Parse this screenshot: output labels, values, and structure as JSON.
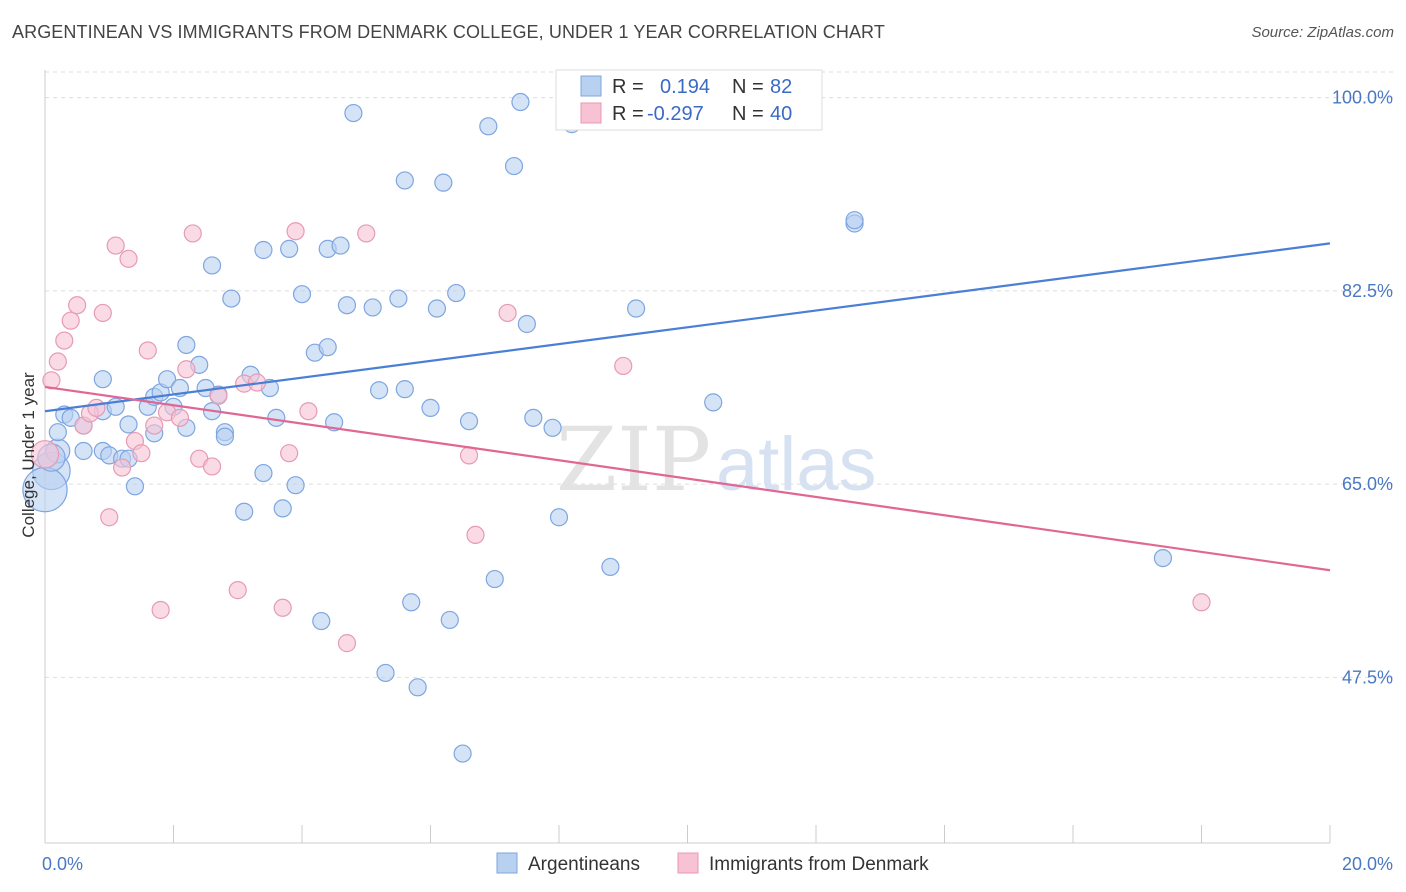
{
  "title": "ARGENTINEAN VS IMMIGRANTS FROM DENMARK COLLEGE, UNDER 1 YEAR CORRELATION CHART",
  "source": "Source: ZipAtlas.com",
  "watermark": {
    "zip": "ZIP",
    "atlas": "atlas"
  },
  "colors": {
    "blue": "#4a7fd6",
    "blue_fill": "#b9d1f1",
    "pink": "#e06794",
    "pink_fill": "#f7c3d4",
    "axis_text": "#4a78c2",
    "grid": "#dddddd"
  },
  "legend_top": {
    "rows": [
      {
        "r_label": "R =",
        "r_value": "0.194",
        "n_label": "N =",
        "n_value": "82"
      },
      {
        "r_label": "R =",
        "r_value": "-0.297",
        "n_label": "N =",
        "n_value": "40"
      }
    ]
  },
  "legend_bottom": [
    "Argentineans",
    "Immigrants from Denmark"
  ],
  "chart_data": {
    "type": "scatter",
    "title": "ARGENTINEAN VS IMMIGRANTS FROM DENMARK COLLEGE, UNDER 1 YEAR CORRELATION CHART",
    "xlabel": "",
    "ylabel": "College, Under 1 year",
    "xlim": [
      0,
      20
    ],
    "ylim": [
      32.5,
      102.5
    ],
    "x_tick_labels": [
      "0.0%",
      "20.0%"
    ],
    "y_tick_labels": [
      "100.0%",
      "82.5%",
      "65.0%",
      "47.5%"
    ],
    "y_ticks": [
      100,
      82.5,
      65,
      47.5
    ],
    "grid": "horizontal dashed",
    "legend_position": "top-center",
    "series": [
      {
        "name": "Argentineans",
        "color": "#4a7fd6",
        "R": 0.194,
        "N": 82,
        "trend": [
          [
            0,
            71.6
          ],
          [
            20,
            86.8
          ]
        ],
        "points": [
          [
            0.1,
            66.2,
            2.2
          ],
          [
            0.2,
            68.0,
            1.4
          ],
          [
            0.2,
            69.7,
            1.0
          ],
          [
            0.3,
            71.3,
            1.0
          ],
          [
            0.4,
            71.0,
            1.0
          ],
          [
            0.6,
            70.3,
            1.0
          ],
          [
            0.6,
            68.0,
            1.0
          ],
          [
            0.9,
            68.0,
            1.0
          ],
          [
            0.9,
            71.6,
            1.0
          ],
          [
            1.0,
            67.6,
            1.0
          ],
          [
            0.9,
            74.5,
            1.0
          ],
          [
            1.1,
            72.0,
            1.0
          ],
          [
            1.2,
            67.3,
            1.0
          ],
          [
            1.3,
            70.4,
            1.0
          ],
          [
            1.3,
            67.3,
            1.0
          ],
          [
            1.4,
            64.8,
            1.0
          ],
          [
            1.6,
            72.0,
            1.0
          ],
          [
            1.7,
            72.9,
            1.0
          ],
          [
            1.7,
            69.6,
            1.0
          ],
          [
            1.8,
            73.3,
            1.0
          ],
          [
            1.9,
            74.5,
            1.0
          ],
          [
            2.0,
            72.0,
            1.0
          ],
          [
            2.1,
            73.7,
            1.0
          ],
          [
            2.2,
            70.1,
            1.0
          ],
          [
            2.2,
            77.6,
            1.0
          ],
          [
            2.4,
            75.8,
            1.0
          ],
          [
            2.5,
            73.7,
            1.0
          ],
          [
            2.6,
            84.8,
            1.0
          ],
          [
            2.6,
            71.6,
            1.0
          ],
          [
            2.7,
            73.1,
            1.0
          ],
          [
            2.8,
            69.7,
            1.0
          ],
          [
            2.8,
            69.3,
            1.0
          ],
          [
            2.9,
            81.8,
            1.0
          ],
          [
            3.1,
            62.5,
            1.0
          ],
          [
            3.2,
            74.9,
            1.0
          ],
          [
            3.4,
            66.0,
            1.0
          ],
          [
            3.4,
            86.2,
            1.0
          ],
          [
            3.5,
            73.7,
            1.0
          ],
          [
            3.6,
            71.0,
            1.0
          ],
          [
            3.7,
            62.8,
            1.0
          ],
          [
            3.8,
            86.3,
            1.0
          ],
          [
            3.9,
            64.9,
            1.0
          ],
          [
            4.0,
            82.2,
            1.0
          ],
          [
            4.2,
            76.9,
            1.0
          ],
          [
            4.3,
            52.6,
            1.0
          ],
          [
            4.4,
            86.3,
            1.0
          ],
          [
            4.4,
            77.4,
            1.0
          ],
          [
            4.5,
            70.6,
            1.0
          ],
          [
            4.6,
            86.6,
            1.0
          ],
          [
            4.7,
            81.2,
            1.0
          ],
          [
            4.8,
            98.6,
            1.0
          ],
          [
            5.1,
            81.0,
            1.0
          ],
          [
            5.2,
            73.5,
            1.0
          ],
          [
            5.3,
            47.9,
            1.0
          ],
          [
            5.5,
            81.8,
            1.0
          ],
          [
            5.6,
            92.5,
            1.0
          ],
          [
            5.6,
            73.6,
            1.0
          ],
          [
            5.7,
            54.3,
            1.0
          ],
          [
            5.8,
            46.6,
            1.0
          ],
          [
            6.0,
            71.9,
            1.0
          ],
          [
            6.1,
            80.9,
            1.0
          ],
          [
            6.2,
            92.3,
            1.0
          ],
          [
            6.3,
            52.7,
            1.0
          ],
          [
            6.4,
            82.3,
            1.0
          ],
          [
            6.5,
            40.6,
            1.0
          ],
          [
            6.6,
            70.7,
            1.0
          ],
          [
            6.9,
            97.4,
            1.0
          ],
          [
            7.0,
            56.4,
            1.0
          ],
          [
            7.3,
            93.8,
            1.0
          ],
          [
            7.4,
            99.6,
            1.0
          ],
          [
            7.5,
            79.5,
            1.0
          ],
          [
            7.6,
            71.0,
            1.0
          ],
          [
            7.9,
            70.1,
            1.0
          ],
          [
            8.0,
            62.0,
            1.0
          ],
          [
            8.8,
            57.5,
            1.0
          ],
          [
            9.2,
            80.9,
            1.0
          ],
          [
            10.4,
            72.4,
            1.0
          ],
          [
            12.6,
            88.6,
            1.0
          ],
          [
            12.6,
            88.9,
            1.0
          ],
          [
            17.4,
            58.3,
            1.0
          ],
          [
            0.0,
            64.5,
            2.6
          ],
          [
            0.1,
            67.4,
            1.6
          ],
          [
            9.4,
            99.6,
            1.0
          ],
          [
            8.2,
            97.6,
            1.0
          ]
        ]
      },
      {
        "name": "Immigrants from Denmark",
        "color": "#e06794",
        "R": -0.297,
        "N": 40,
        "trend": [
          [
            0,
            73.8
          ],
          [
            20,
            57.2
          ]
        ],
        "points": [
          [
            0.0,
            67.7,
            1.6
          ],
          [
            0.1,
            74.4,
            1.0
          ],
          [
            0.2,
            76.1,
            1.0
          ],
          [
            0.3,
            78.0,
            1.0
          ],
          [
            0.4,
            79.8,
            1.0
          ],
          [
            0.5,
            81.2,
            1.0
          ],
          [
            0.6,
            70.3,
            1.0
          ],
          [
            0.7,
            71.4,
            1.0
          ],
          [
            0.8,
            71.9,
            1.0
          ],
          [
            0.9,
            80.5,
            1.0
          ],
          [
            1.0,
            62.0,
            1.0
          ],
          [
            1.1,
            86.6,
            1.0
          ],
          [
            1.2,
            66.5,
            1.0
          ],
          [
            1.3,
            85.4,
            1.0
          ],
          [
            1.4,
            68.9,
            1.0
          ],
          [
            1.5,
            67.8,
            1.0
          ],
          [
            1.6,
            77.1,
            1.0
          ],
          [
            1.7,
            70.3,
            1.0
          ],
          [
            1.8,
            53.6,
            1.0
          ],
          [
            1.9,
            71.5,
            1.0
          ],
          [
            2.1,
            71.0,
            1.0
          ],
          [
            2.2,
            75.4,
            1.0
          ],
          [
            2.3,
            87.7,
            1.0
          ],
          [
            2.4,
            67.3,
            1.0
          ],
          [
            2.6,
            66.6,
            1.0
          ],
          [
            2.7,
            73.0,
            1.0
          ],
          [
            3.0,
            55.4,
            1.0
          ],
          [
            3.1,
            74.1,
            1.0
          ],
          [
            3.3,
            74.2,
            1.0
          ],
          [
            3.7,
            53.8,
            1.0
          ],
          [
            3.8,
            67.8,
            1.0
          ],
          [
            3.9,
            87.9,
            1.0
          ],
          [
            4.1,
            71.6,
            1.0
          ],
          [
            4.7,
            50.6,
            1.0
          ],
          [
            5.0,
            87.7,
            1.0
          ],
          [
            6.6,
            67.6,
            1.0
          ],
          [
            6.7,
            60.4,
            1.0
          ],
          [
            7.2,
            80.5,
            1.0
          ],
          [
            9.0,
            75.7,
            1.0
          ],
          [
            18.0,
            54.3,
            1.0
          ]
        ]
      }
    ]
  }
}
